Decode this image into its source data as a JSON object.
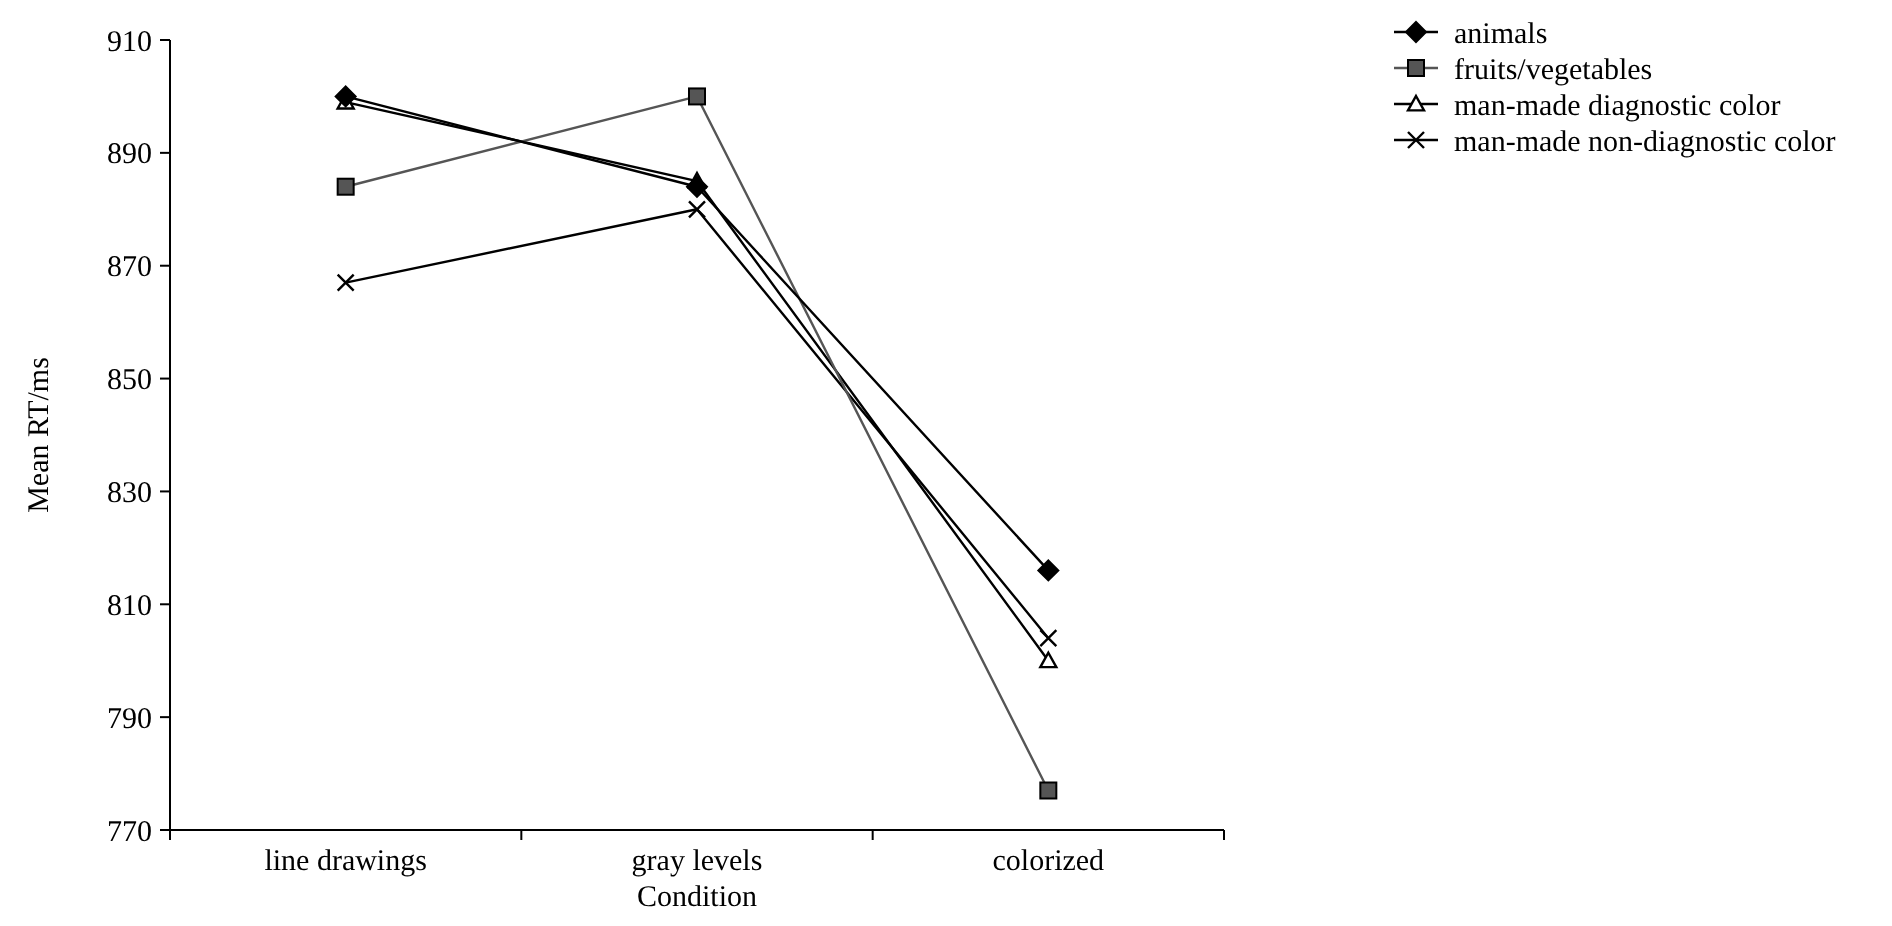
{
  "chart_data": {
    "type": "line",
    "xlabel": "Condition",
    "ylabel": "Mean RT/ms",
    "categories": [
      "line drawings",
      "gray levels",
      "colorized"
    ],
    "series": [
      {
        "name": "animals",
        "color": "#000000",
        "marker": "diamond",
        "values": [
          900,
          884,
          816
        ]
      },
      {
        "name": "fruits/vegetables",
        "color": "#555555",
        "marker": "square",
        "values": [
          884,
          900,
          777
        ]
      },
      {
        "name": "man-made diagnostic color",
        "color": "#000000",
        "marker": "triangle",
        "values": [
          899,
          885,
          800
        ]
      },
      {
        "name": "man-made non-diagnostic color",
        "color": "#000000",
        "marker": "cross",
        "values": [
          867,
          880,
          804
        ]
      }
    ],
    "ylim": [
      770,
      910
    ],
    "yticks": [
      770,
      790,
      810,
      830,
      850,
      870,
      890,
      910
    ],
    "grid": false,
    "legend": "top right",
    "line_style": "solid"
  }
}
